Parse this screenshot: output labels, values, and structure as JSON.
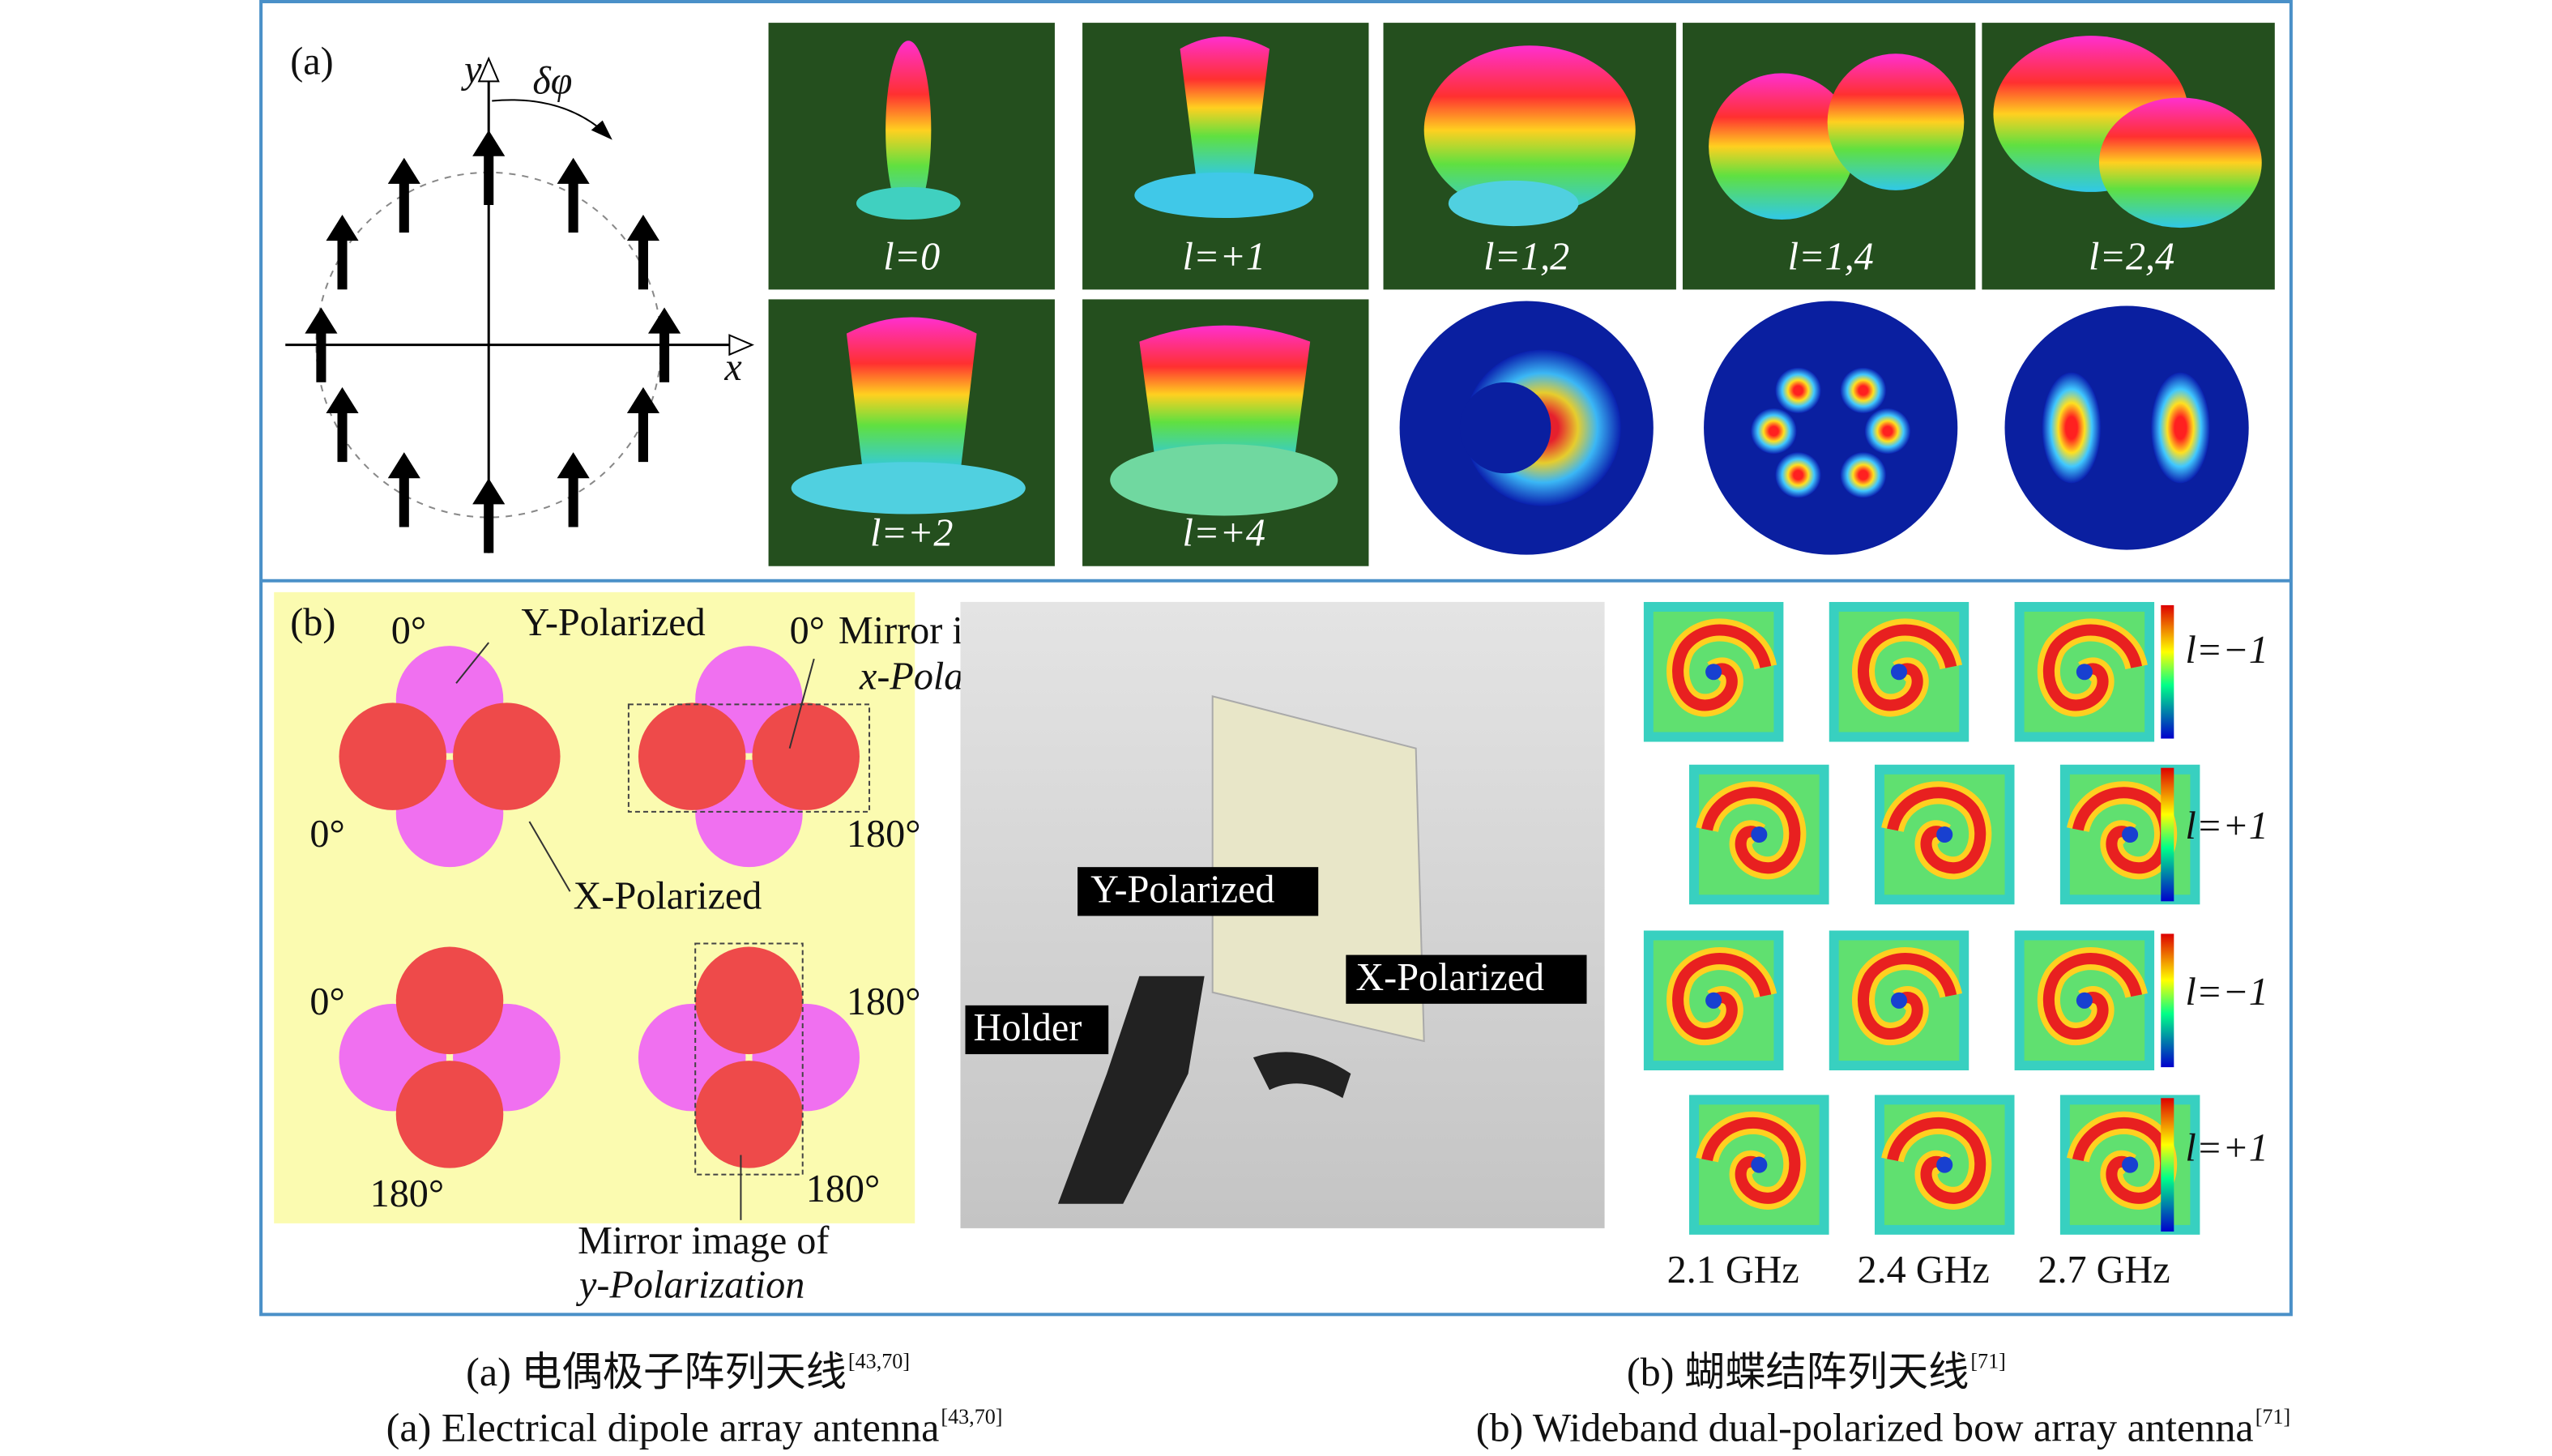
{
  "panel_a": {
    "label": "(a)",
    "axis_y": "y",
    "axis_x": "x",
    "rotation": "δφ",
    "patterns": [
      "l=0",
      "l=+1",
      "l=+2",
      "l=+4",
      "l=1,2",
      "l=1,4",
      "l=2,4"
    ]
  },
  "panel_b": {
    "label": "(b)",
    "layout": {
      "angle_tl": "0°",
      "y_polarized": "Y-Polarized",
      "angle_tr": "0°",
      "mirror_x_1": "Mirror image of",
      "mirror_x_2": "x-Polarization",
      "angle_l1": "0°",
      "angle_r1": "180°",
      "x_polarized": "X-Polarized",
      "angle_l2": "0°",
      "angle_r2": "180°",
      "angle_bl": "180°",
      "angle_br": "180°",
      "mirror_y_1": "Mirror image of",
      "mirror_y_2": "y-Polarization"
    },
    "photo": {
      "y_polarized": "Y-Polarized",
      "x_polarized": "X-Polarized",
      "holder": "Holder"
    },
    "modes": [
      "l=−1",
      "l=+1",
      "l=−1",
      "l=+1"
    ],
    "frequencies": [
      "2.1 GHz",
      "2.4 GHz",
      "2.7 GHz"
    ]
  },
  "captions": {
    "a_cn": "(a) 电偶极子阵列天线",
    "a_cn_ref": "[43,70]",
    "a_en": "(a) Electrical dipole array antenna",
    "a_en_ref": "[43,70]",
    "b_cn": "(b) 蝴蝶结阵列天线",
    "b_cn_ref": "[71]",
    "b_en": "(b) Wideband dual-polarized bow array antenna",
    "b_en_ref": "[71]"
  }
}
